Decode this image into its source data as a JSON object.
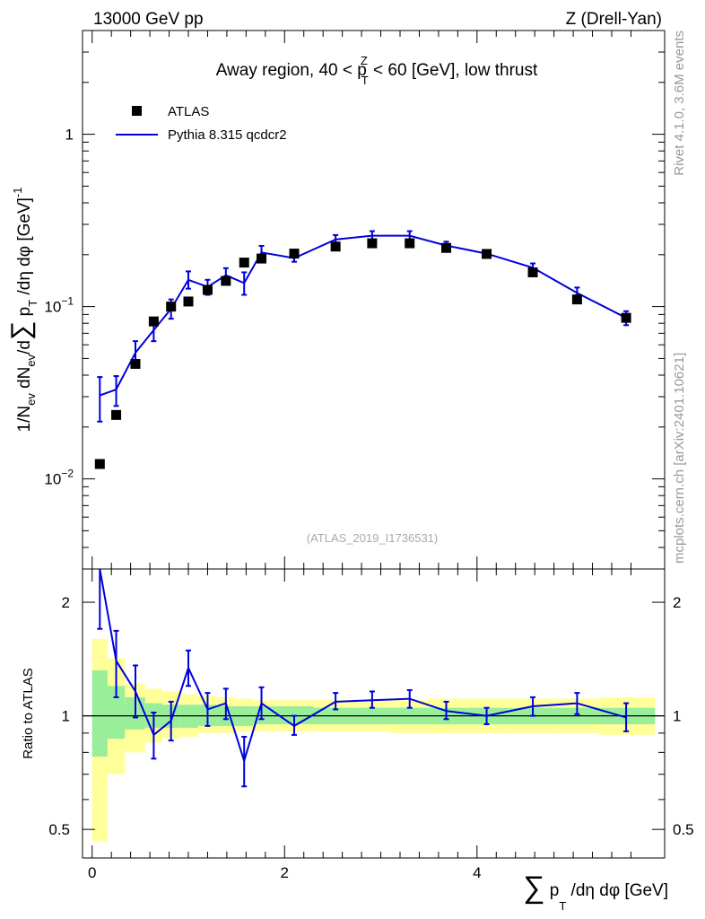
{
  "header": {
    "left": "13000 GeV pp",
    "right": "Z (Drell-Yan)"
  },
  "side": {
    "rivet": "Rivet 4.1.0,  3.6M events",
    "mcplots": "mcplots.cern.ch [arXiv:2401.10621]"
  },
  "colors": {
    "mc": "#0000dd",
    "data": "#000000",
    "band_outer": "#ffff99",
    "band_inner": "#99ee99"
  },
  "chart_data": [
    {
      "type": "scatter",
      "scale": "log",
      "title": "Away region, 40 < p_T^Z < 60 [GeV], low thrust",
      "title_parts": {
        "pre": "Away region, 40 < p",
        "sup": "Z",
        "sub": "T",
        "post": " < 60 [GeV], low thrust"
      },
      "watermark": "(ATLAS_2019_I1736531)",
      "ylabel": "1/N_ev dN_ev/d∑p_T/dη dφ [GeV]^-1",
      "ylabel_parts": {
        "a": "1/N",
        "a_sub": "ev",
        "b": " dN",
        "b_sub": "ev",
        "c": "/d",
        "sum": "∑",
        "d": " p",
        "d_sub": "T",
        "e": " /dη dφ  [GeV]",
        "e_sup": "-1"
      },
      "xlim": [
        -0.1,
        5.95
      ],
      "ylim": [
        0.003,
        4.0
      ],
      "y_ticks": [
        {
          "value": 0.01,
          "base": "10",
          "exp": "−2"
        },
        {
          "value": 0.1,
          "base": "10",
          "exp": "−1"
        },
        {
          "value": 1,
          "base": "1",
          "exp": ""
        }
      ],
      "legend": [
        {
          "label": "ATLAS",
          "marker": "square"
        },
        {
          "label": "Pythia 8.315 qcdcr2",
          "marker": "line"
        }
      ],
      "series": [
        {
          "name": "ATLAS",
          "x": [
            0.08,
            0.25,
            0.45,
            0.64,
            0.82,
            1.0,
            1.2,
            1.39,
            1.58,
            1.76,
            2.1,
            2.53,
            2.91,
            3.3,
            3.68,
            4.1,
            4.58,
            5.04,
            5.55
          ],
          "y": [
            0.0122,
            0.0235,
            0.0465,
            0.082,
            0.1,
            0.107,
            0.125,
            0.141,
            0.18,
            0.19,
            0.203,
            0.223,
            0.233,
            0.233,
            0.219,
            0.202,
            0.158,
            0.11,
            0.086
          ]
        },
        {
          "name": "Pythia 8.315 qcdcr2",
          "x": [
            0.08,
            0.25,
            0.45,
            0.64,
            0.82,
            1.0,
            1.2,
            1.39,
            1.58,
            1.76,
            2.1,
            2.53,
            2.91,
            3.3,
            3.68,
            4.1,
            4.58,
            5.04,
            5.55
          ],
          "y": [
            0.0305,
            0.033,
            0.054,
            0.073,
            0.097,
            0.143,
            0.13,
            0.152,
            0.137,
            0.206,
            0.191,
            0.245,
            0.258,
            0.258,
            0.226,
            0.203,
            0.168,
            0.12,
            0.086
          ],
          "err_lo": [
            0.0215,
            0.0265,
            0.046,
            0.063,
            0.085,
            0.127,
            0.117,
            0.138,
            0.117,
            0.188,
            0.182,
            0.232,
            0.245,
            0.245,
            0.214,
            0.193,
            0.158,
            0.111,
            0.078
          ],
          "err_hi": [
            0.039,
            0.0395,
            0.063,
            0.083,
            0.11,
            0.16,
            0.143,
            0.167,
            0.158,
            0.225,
            0.202,
            0.26,
            0.274,
            0.274,
            0.238,
            0.213,
            0.178,
            0.129,
            0.094
          ]
        }
      ]
    },
    {
      "type": "line",
      "scale": "log",
      "ylabel": "Ratio to ATLAS",
      "xlabel": "∑p_T/dη dφ [GeV]",
      "xlabel_parts": {
        "sum": "∑",
        "p": " p",
        "sub": "T",
        "rest": " /dη dφ [GeV]"
      },
      "xlim": [
        -0.1,
        5.95
      ],
      "ylim": [
        0.42,
        2.45
      ],
      "x_ticks": [
        0,
        2,
        4
      ],
      "y_ticks": [
        {
          "value": 0.5,
          "label": "0.5"
        },
        {
          "value": 1,
          "label": "1"
        },
        {
          "value": 2,
          "label": "2"
        }
      ],
      "bins": [
        {
          "lo": 0.0,
          "hi": 0.16,
          "in_lo": 0.78,
          "in_hi": 1.32,
          "out_lo": 0.465,
          "out_hi": 1.6
        },
        {
          "lo": 0.16,
          "hi": 0.34,
          "in_lo": 0.87,
          "in_hi": 1.2,
          "out_lo": 0.7,
          "out_hi": 1.42
        },
        {
          "lo": 0.34,
          "hi": 0.55,
          "in_lo": 0.92,
          "in_hi": 1.12,
          "out_lo": 0.8,
          "out_hi": 1.22
        },
        {
          "lo": 0.55,
          "hi": 0.73,
          "in_lo": 0.93,
          "in_hi": 1.08,
          "out_lo": 0.85,
          "out_hi": 1.18
        },
        {
          "lo": 0.73,
          "hi": 0.91,
          "in_lo": 0.93,
          "in_hi": 1.07,
          "out_lo": 0.87,
          "out_hi": 1.16
        },
        {
          "lo": 0.91,
          "hi": 1.1,
          "in_lo": 0.93,
          "in_hi": 1.07,
          "out_lo": 0.88,
          "out_hi": 1.14
        },
        {
          "lo": 1.1,
          "hi": 1.29,
          "in_lo": 0.94,
          "in_hi": 1.07,
          "out_lo": 0.9,
          "out_hi": 1.13
        },
        {
          "lo": 1.29,
          "hi": 1.48,
          "in_lo": 0.94,
          "in_hi": 1.06,
          "out_lo": 0.9,
          "out_hi": 1.12
        },
        {
          "lo": 1.48,
          "hi": 1.67,
          "in_lo": 0.94,
          "in_hi": 1.06,
          "out_lo": 0.91,
          "out_hi": 1.11
        },
        {
          "lo": 1.67,
          "hi": 1.92,
          "in_lo": 0.95,
          "in_hi": 1.06,
          "out_lo": 0.91,
          "out_hi": 1.1
        },
        {
          "lo": 1.92,
          "hi": 2.3,
          "in_lo": 0.95,
          "in_hi": 1.06,
          "out_lo": 0.91,
          "out_hi": 1.1
        },
        {
          "lo": 2.3,
          "hi": 2.72,
          "in_lo": 0.95,
          "in_hi": 1.05,
          "out_lo": 0.91,
          "out_hi": 1.1
        },
        {
          "lo": 2.72,
          "hi": 3.1,
          "in_lo": 0.95,
          "in_hi": 1.05,
          "out_lo": 0.91,
          "out_hi": 1.1
        },
        {
          "lo": 3.1,
          "hi": 3.48,
          "in_lo": 0.95,
          "in_hi": 1.05,
          "out_lo": 0.9,
          "out_hi": 1.1
        },
        {
          "lo": 3.48,
          "hi": 3.9,
          "in_lo": 0.95,
          "in_hi": 1.05,
          "out_lo": 0.9,
          "out_hi": 1.11
        },
        {
          "lo": 3.9,
          "hi": 4.32,
          "in_lo": 0.95,
          "in_hi": 1.05,
          "out_lo": 0.9,
          "out_hi": 1.11
        },
        {
          "lo": 4.32,
          "hi": 4.8,
          "in_lo": 0.95,
          "in_hi": 1.05,
          "out_lo": 0.9,
          "out_hi": 1.11
        },
        {
          "lo": 4.8,
          "hi": 5.28,
          "in_lo": 0.95,
          "in_hi": 1.05,
          "out_lo": 0.9,
          "out_hi": 1.11
        },
        {
          "lo": 5.28,
          "hi": 5.85,
          "in_lo": 0.95,
          "in_hi": 1.05,
          "out_lo": 0.89,
          "out_hi": 1.12
        }
      ],
      "series": [
        {
          "name": "Pythia 8.315 qcdcr2 / ATLAS",
          "x": [
            0.08,
            0.25,
            0.45,
            0.64,
            0.82,
            1.0,
            1.2,
            1.39,
            1.58,
            1.76,
            2.1,
            2.53,
            2.91,
            3.3,
            3.68,
            4.1,
            4.58,
            5.04,
            5.55
          ],
          "y": [
            2.5,
            1.4,
            1.16,
            0.89,
            0.97,
            1.34,
            1.04,
            1.08,
            0.76,
            1.08,
            0.94,
            1.09,
            1.1,
            1.11,
            1.03,
            1.0,
            1.06,
            1.08,
            0.99
          ],
          "err_lo": [
            1.7,
            1.12,
            0.99,
            0.77,
            0.86,
            1.2,
            0.94,
            0.98,
            0.65,
            0.98,
            0.89,
            1.04,
            1.05,
            1.05,
            0.98,
            0.95,
            1.0,
            1.01,
            0.91
          ],
          "err_hi": [
            2.5,
            1.68,
            1.36,
            1.02,
            1.09,
            1.49,
            1.15,
            1.18,
            0.88,
            1.19,
            1.0,
            1.15,
            1.16,
            1.17,
            1.09,
            1.05,
            1.12,
            1.15,
            1.08
          ]
        }
      ]
    }
  ]
}
